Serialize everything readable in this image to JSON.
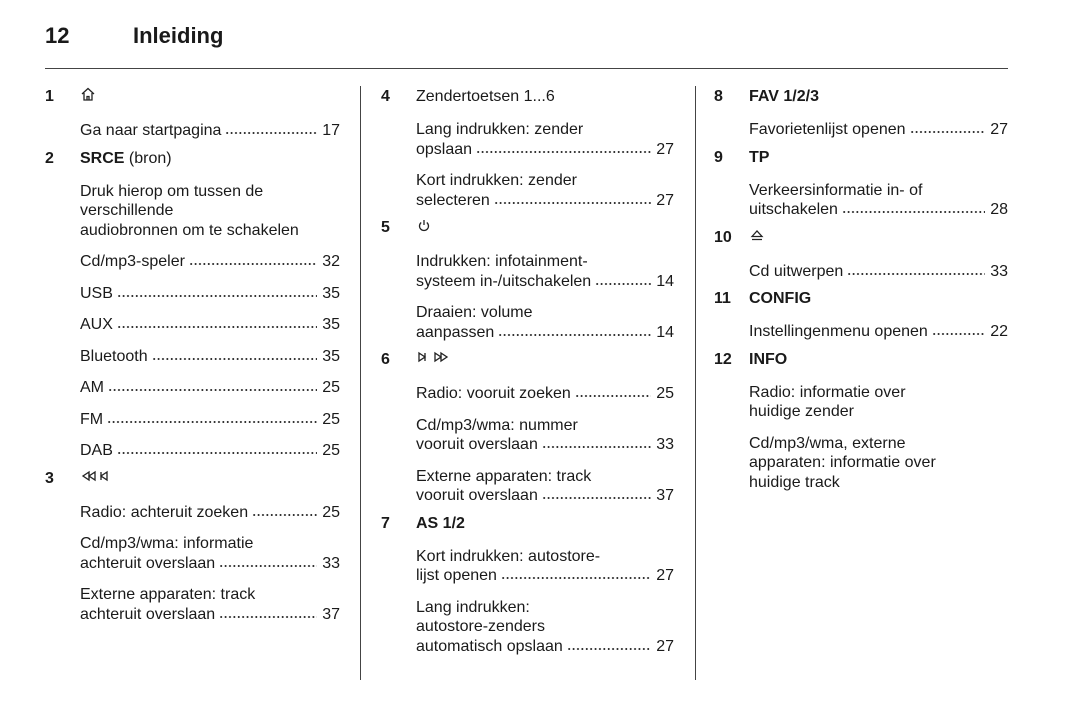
{
  "header": {
    "page_number": 12,
    "title": "Inleiding"
  },
  "columns": [
    {
      "items": [
        {
          "number": 1,
          "entries": [
            {
              "lines": [
                "Ga naar startpagina"
              ],
              "page": 17
            }
          ]
        },
        {
          "number": 2,
          "key": "SRCE",
          "label": "(bron)",
          "entries": [
            {
              "lines": [
                "Druk hierop om tussen de",
                "verschillende",
                "audiobronnen om te schakelen"
              ]
            },
            {
              "lines": [
                "Cd/mp3-speler"
              ],
              "page": 32
            },
            {
              "lines": [
                "USB"
              ],
              "page": 35
            },
            {
              "lines": [
                "AUX"
              ],
              "page": 35
            },
            {
              "lines": [
                "Bluetooth"
              ],
              "page": 35
            },
            {
              "lines": [
                "AM"
              ],
              "page": 25
            },
            {
              "lines": [
                "FM"
              ],
              "page": 25
            },
            {
              "lines": [
                "DAB"
              ],
              "page": 25
            }
          ]
        },
        {
          "number": 3,
          "entries": [
            {
              "lines": [
                "Radio: achteruit zoeken"
              ],
              "page": 25
            },
            {
              "lines": [
                "Cd/mp3/wma: informatie",
                "achteruit overslaan"
              ],
              "page": 33
            },
            {
              "lines": [
                "Externe apparaten: track",
                "achteruit overslaan"
              ],
              "page": 37
            }
          ]
        }
      ]
    },
    {
      "items": [
        {
          "number": 4,
          "label": "Zendertoetsen 1...6",
          "entries": [
            {
              "lines": [
                "Lang indrukken: zender",
                "opslaan"
              ],
              "page": 27
            },
            {
              "lines": [
                "Kort indrukken: zender",
                "selecteren"
              ],
              "page": 27
            }
          ]
        },
        {
          "number": 5,
          "entries": [
            {
              "lines": [
                "Indrukken: infotainment-",
                "systeem in-/uitschakelen"
              ],
              "page": 14
            },
            {
              "lines": [
                "Draaien: volume",
                "aanpassen"
              ],
              "page": 14
            }
          ]
        },
        {
          "number": 6,
          "entries": [
            {
              "lines": [
                "Radio: vooruit zoeken"
              ],
              "page": 25
            },
            {
              "lines": [
                "Cd/mp3/wma: nummer",
                "vooruit overslaan"
              ],
              "page": 33
            },
            {
              "lines": [
                "Externe apparaten: track",
                "vooruit overslaan"
              ],
              "page": 37
            }
          ]
        },
        {
          "number": 7,
          "key": "AS 1/2",
          "entries": [
            {
              "lines": [
                "Kort indrukken: autostore-",
                "lijst openen"
              ],
              "page": 27
            },
            {
              "lines": [
                "Lang indrukken:",
                "autostore-zenders",
                "automatisch opslaan"
              ],
              "page": 27
            }
          ]
        }
      ]
    },
    {
      "items": [
        {
          "number": 8,
          "key": "FAV 1/2/3",
          "entries": [
            {
              "lines": [
                "Favorietenlijst openen"
              ],
              "page": 27
            }
          ]
        },
        {
          "number": 9,
          "key": "TP",
          "entries": [
            {
              "lines": [
                "Verkeersinformatie in- of",
                "uitschakelen"
              ],
              "page": 28
            }
          ]
        },
        {
          "number": 10,
          "entries": [
            {
              "lines": [
                "Cd uitwerpen"
              ],
              "page": 33
            }
          ]
        },
        {
          "number": 11,
          "key": "CONFIG",
          "entries": [
            {
              "lines": [
                "Instellingenmenu openen"
              ],
              "page": 22
            }
          ]
        },
        {
          "number": 12,
          "key": "INFO",
          "entries": [
            {
              "lines": [
                "Radio: informatie over",
                "huidige zender"
              ]
            },
            {
              "lines": [
                "Cd/mp3/wma, externe",
                "apparaten: informatie over",
                "huidige track"
              ]
            }
          ]
        }
      ]
    }
  ]
}
